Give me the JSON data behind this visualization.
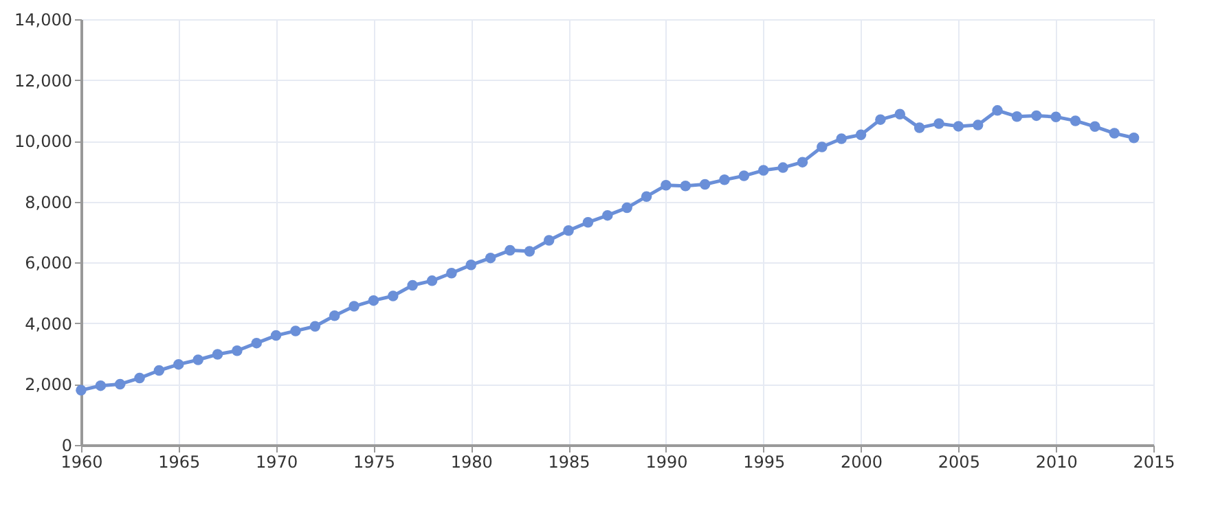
{
  "chart_data": {
    "type": "line",
    "x": [
      1960,
      1961,
      1962,
      1963,
      1964,
      1965,
      1966,
      1967,
      1968,
      1969,
      1970,
      1971,
      1972,
      1973,
      1974,
      1975,
      1976,
      1977,
      1978,
      1979,
      1980,
      1981,
      1982,
      1983,
      1984,
      1985,
      1986,
      1987,
      1988,
      1989,
      1990,
      1991,
      1992,
      1993,
      1994,
      1995,
      1996,
      1997,
      1998,
      1999,
      2000,
      2001,
      2002,
      2003,
      2004,
      2005,
      2006,
      2007,
      2008,
      2009,
      2010,
      2011,
      2012,
      2013,
      2014
    ],
    "series": [
      {
        "color": "#6a8fd8",
        "values": [
          1800,
          1950,
          2000,
          2200,
          2450,
          2650,
          2800,
          2980,
          3100,
          3350,
          3600,
          3750,
          3900,
          4250,
          4560,
          4750,
          4900,
          5250,
          5400,
          5650,
          5920,
          6150,
          6400,
          6370,
          6730,
          7050,
          7320,
          7550,
          7800,
          8170,
          8540,
          8520,
          8570,
          8720,
          8850,
          9030,
          9120,
          9300,
          9800,
          10070,
          10200,
          10700,
          10880,
          10430,
          10570,
          10480,
          10520,
          11000,
          10800,
          10830,
          10790,
          10660,
          10470,
          10250,
          10100
        ]
      }
    ],
    "xlim": [
      1960,
      2015
    ],
    "xticks": [
      1960,
      1965,
      1970,
      1975,
      1980,
      1985,
      1990,
      1995,
      2000,
      2005,
      2010,
      2015
    ],
    "ylim": [
      0,
      14000
    ],
    "yticks": [
      {
        "value": 0,
        "label": "0"
      },
      {
        "value": 2000,
        "label": "2,000"
      },
      {
        "value": 4000,
        "label": "4,000"
      },
      {
        "value": 6000,
        "label": "6,000"
      },
      {
        "value": 8000,
        "label": "8,000"
      },
      {
        "value": 10000,
        "label": "10,000"
      },
      {
        "value": 12000,
        "label": "12,000"
      },
      {
        "value": 14000,
        "label": "14,000"
      }
    ],
    "grid": true,
    "marker": "circle",
    "line_style": "solid"
  }
}
